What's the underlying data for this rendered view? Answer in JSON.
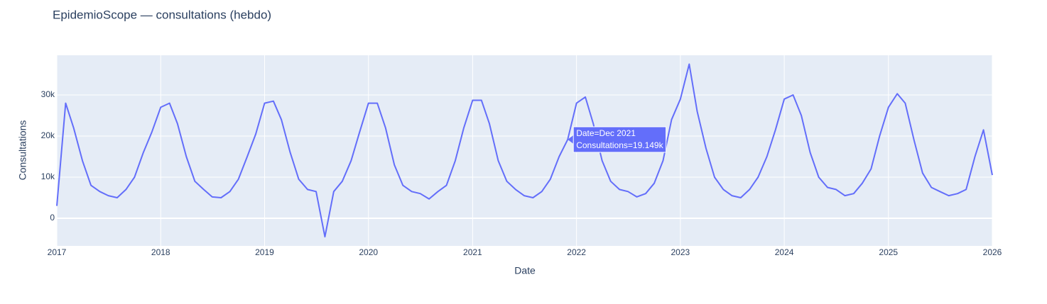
{
  "chart_data": {
    "type": "line",
    "title": "EpidemioScope — consultations (hebdo)",
    "x_label": "Date",
    "y_label": "Consultations",
    "x": [
      "2017-01",
      "2017-02",
      "2017-03",
      "2017-04",
      "2017-05",
      "2017-06",
      "2017-07",
      "2017-08",
      "2017-09",
      "2017-10",
      "2017-11",
      "2017-12",
      "2018-01",
      "2018-02",
      "2018-03",
      "2018-04",
      "2018-05",
      "2018-06",
      "2018-07",
      "2018-08",
      "2018-09",
      "2018-10",
      "2018-11",
      "2018-12",
      "2019-01",
      "2019-02",
      "2019-03",
      "2019-04",
      "2019-05",
      "2019-06",
      "2019-07",
      "2019-08",
      "2019-09",
      "2019-10",
      "2019-11",
      "2019-12",
      "2020-01",
      "2020-02",
      "2020-03",
      "2020-04",
      "2020-05",
      "2020-06",
      "2020-07",
      "2020-08",
      "2020-09",
      "2020-10",
      "2020-11",
      "2020-12",
      "2021-01",
      "2021-02",
      "2021-03",
      "2021-04",
      "2021-05",
      "2021-06",
      "2021-07",
      "2021-08",
      "2021-09",
      "2021-10",
      "2021-11",
      "2021-12",
      "2022-01",
      "2022-02",
      "2022-03",
      "2022-04",
      "2022-05",
      "2022-06",
      "2022-07",
      "2022-08",
      "2022-09",
      "2022-10",
      "2022-11",
      "2022-12",
      "2023-01",
      "2023-02",
      "2023-03",
      "2023-04",
      "2023-05",
      "2023-06",
      "2023-07",
      "2023-08",
      "2023-09",
      "2023-10",
      "2023-11",
      "2023-12",
      "2024-01",
      "2024-02",
      "2024-03",
      "2024-04",
      "2024-05",
      "2024-06",
      "2024-07",
      "2024-08",
      "2024-09",
      "2024-10",
      "2024-11",
      "2024-12",
      "2025-01",
      "2025-02",
      "2025-03",
      "2025-04",
      "2025-05",
      "2025-06",
      "2025-07",
      "2025-08",
      "2025-09",
      "2025-10",
      "2025-11",
      "2025-12",
      "2026-01"
    ],
    "values": [
      3000,
      28000,
      22000,
      14000,
      8000,
      6500,
      5500,
      5000,
      7000,
      10000,
      16000,
      21000,
      27000,
      28000,
      23000,
      15000,
      9000,
      7000,
      5200,
      5000,
      6500,
      9500,
      15000,
      20500,
      28000,
      28500,
      24000,
      16000,
      9500,
      7000,
      6500,
      -4500,
      6500,
      9000,
      14000,
      21000,
      28000,
      28000,
      22000,
      13000,
      8000,
      6500,
      6000,
      4700,
      6500,
      8000,
      14000,
      22000,
      28700,
      28700,
      23000,
      14000,
      9000,
      7000,
      5500,
      5000,
      6500,
      9500,
      15000,
      19149,
      28000,
      29500,
      23000,
      14000,
      9000,
      7000,
      6500,
      5200,
      6000,
      8500,
      14000,
      24000,
      29000,
      37500,
      26000,
      17000,
      10000,
      7000,
      5500,
      5000,
      7000,
      10000,
      15000,
      21500,
      29000,
      30000,
      25000,
      16000,
      10000,
      7500,
      7000,
      5500,
      6000,
      8500,
      12000,
      20000,
      27000,
      30300,
      28000,
      19000,
      11000,
      7500,
      6500,
      5500,
      6000,
      7000,
      15000,
      21500,
      10500
    ],
    "color": "#636efa",
    "xlim": [
      "2017",
      "2026"
    ],
    "xticks": [
      "2017",
      "2018",
      "2019",
      "2020",
      "2021",
      "2022",
      "2023",
      "2024",
      "2025",
      "2026"
    ],
    "ylim": [
      -6724,
      39655
    ],
    "yticks": [
      0,
      {
        "value": 10000,
        "label": "10k"
      },
      {
        "value": 20000,
        "label": "20k"
      },
      {
        "value": 30000,
        "label": "30k"
      }
    ],
    "grid": true,
    "tooltip": {
      "x": "2021-12",
      "value": 19149,
      "text": [
        "Date=Dec 2021",
        "Consultations=19.149k"
      ]
    }
  }
}
